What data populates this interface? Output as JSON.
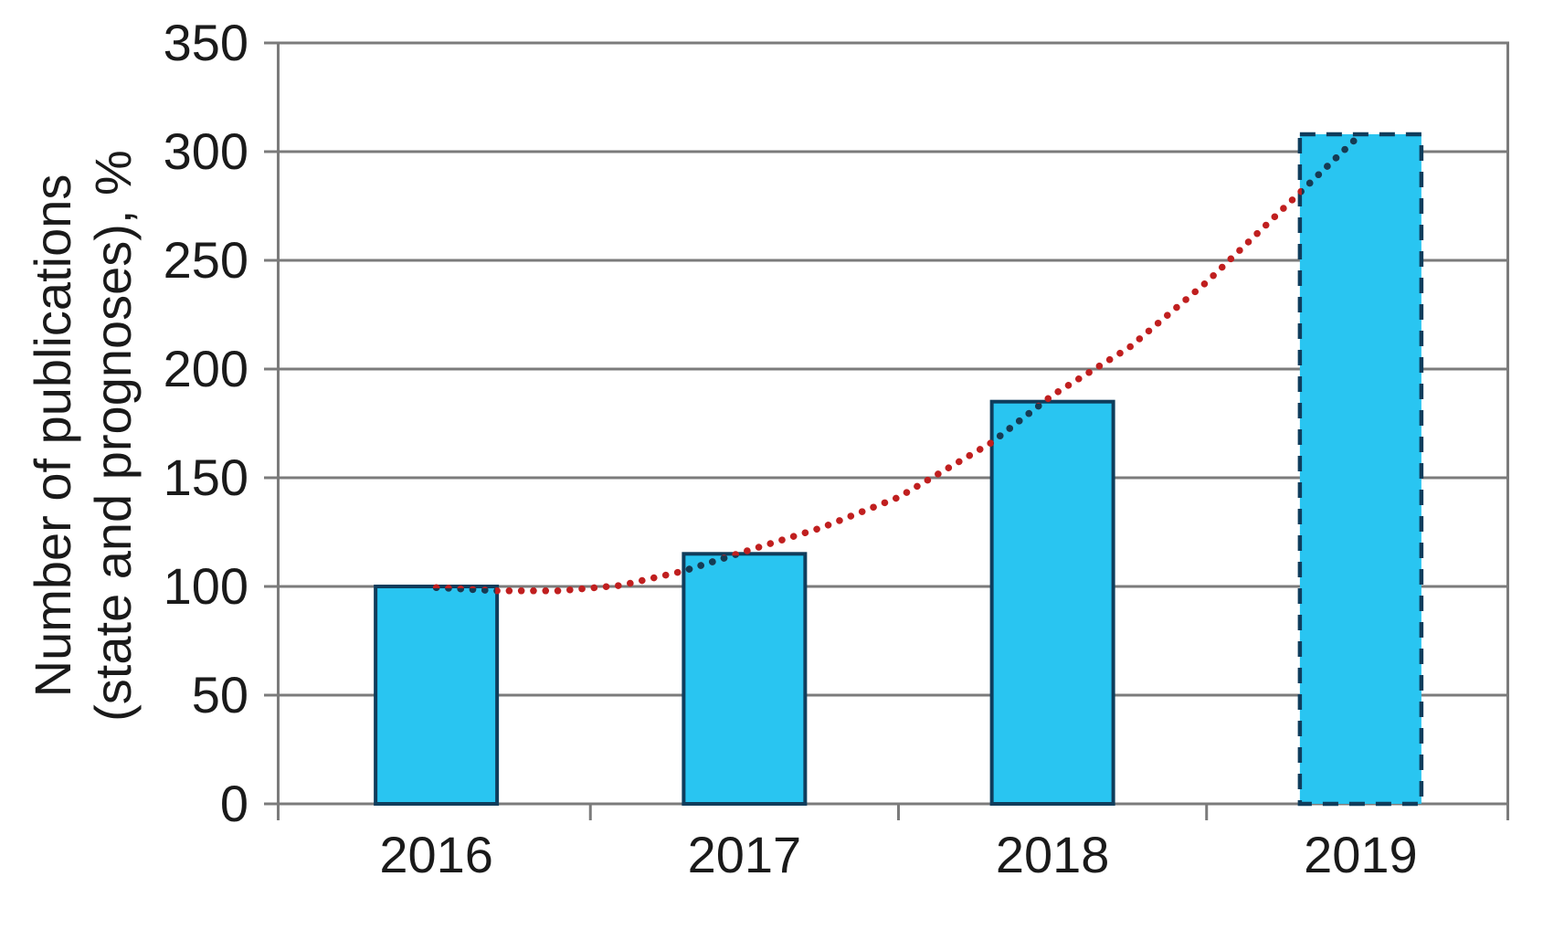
{
  "chart_data": {
    "type": "bar",
    "title": "",
    "categories": [
      "2016",
      "2017",
      "2018",
      "2019"
    ],
    "values": [
      100,
      115,
      185,
      308
    ],
    "series": [
      {
        "name": "Number of publications (state and prognoses), %",
        "values": [
          100,
          115,
          185,
          308
        ]
      }
    ],
    "xlabel": "",
    "ylabel_line1": "Number of publications",
    "ylabel_line2": "(state and prognoses), %",
    "ylim": [
      0,
      350
    ],
    "yticks": [
      0,
      50,
      100,
      150,
      200,
      250,
      300,
      350
    ],
    "grid": true,
    "legend": "none",
    "forecast_category": "2019",
    "bar_border_style": {
      "2016": "solid",
      "2017": "solid",
      "2018": "solid",
      "2019": "dashed"
    },
    "trendline": {
      "style": "dotted",
      "shape": "exponential",
      "color_outside_bars": "#c01f1f",
      "color_over_bars": "#123c55",
      "points": [
        [
          0,
          99.5
        ],
        [
          0.2,
          98
        ],
        [
          0.4,
          98
        ],
        [
          0.6,
          100.5
        ],
        [
          0.8,
          107
        ],
        [
          1.0,
          116
        ],
        [
          1.25,
          127
        ],
        [
          1.5,
          141
        ],
        [
          1.8,
          166
        ],
        [
          2.0,
          188
        ],
        [
          2.25,
          210
        ],
        [
          2.5,
          240
        ],
        [
          2.75,
          274
        ],
        [
          3.0,
          308
        ]
      ]
    },
    "colors": {
      "bar_fill": "#29c5f1",
      "bar_border": "#0f3d5c",
      "grid": "#7b7b7b",
      "text": "#1a1a1a",
      "background": "#ffffff"
    }
  }
}
